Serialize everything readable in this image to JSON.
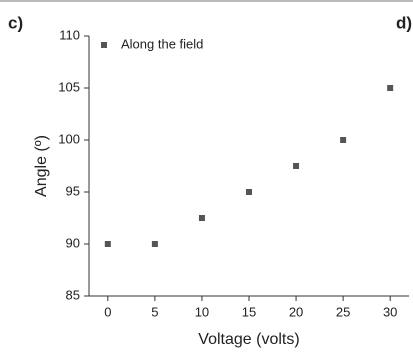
{
  "chart_data": {
    "type": "scatter",
    "panel_label": "c)",
    "next_panel_label": "d)",
    "xlabel": "Voltage (volts)",
    "ylabel": "Angle (º)",
    "series": [
      {
        "name": "Along the field",
        "color": "#555555",
        "x": [
          0,
          5,
          10,
          15,
          20,
          25,
          30
        ],
        "values": [
          90,
          90,
          92.5,
          95,
          97.5,
          100,
          105
        ]
      }
    ],
    "xlim": [
      -2,
      32
    ],
    "ylim": [
      85,
      110
    ],
    "xticks": [
      0,
      5,
      10,
      15,
      20,
      25,
      30
    ],
    "yticks": [
      85,
      90,
      95,
      100,
      105,
      110
    ],
    "legend": "upper left"
  }
}
